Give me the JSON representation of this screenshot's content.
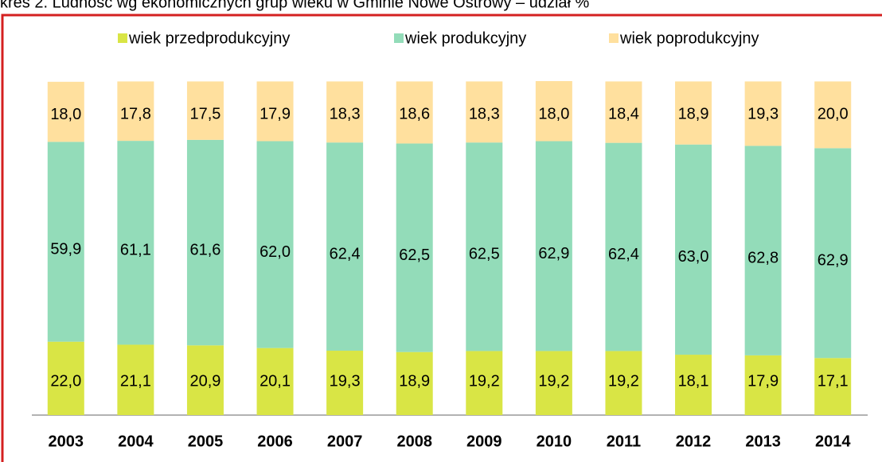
{
  "chart_data": {
    "type": "stacked_bar",
    "title": "kres 2. Ludność wg ekonomicznych grup wieku w Gminie Nowe Ostrowy – udział %",
    "categories": [
      "2003",
      "2004",
      "2005",
      "2006",
      "2007",
      "2008",
      "2009",
      "2010",
      "2011",
      "2012",
      "2013",
      "2014"
    ],
    "series": [
      {
        "name": "wiek przedprodukcyjny",
        "color": "#d9e545",
        "values": [
          22.0,
          21.1,
          20.9,
          20.1,
          19.3,
          18.9,
          19.2,
          19.2,
          19.2,
          18.1,
          17.9,
          17.1
        ],
        "value_labels": [
          "22,0",
          "21,1",
          "20,9",
          "20,1",
          "19,3",
          "18,9",
          "19,2",
          "19,2",
          "19,2",
          "18,1",
          "17,9",
          "17,1"
        ]
      },
      {
        "name": "wiek produkcyjny",
        "color": "#93dcb9",
        "values": [
          59.9,
          61.1,
          61.6,
          62.0,
          62.4,
          62.5,
          62.5,
          62.9,
          62.4,
          63.0,
          62.8,
          62.9
        ],
        "value_labels": [
          "59,9",
          "61,1",
          "61,6",
          "62,0",
          "62,4",
          "62,5",
          "62,5",
          "62,9",
          "62,4",
          "63,0",
          "62,8",
          "62,9"
        ]
      },
      {
        "name": "wiek poprodukcyjny",
        "color": "#ffe09e",
        "values": [
          18.0,
          17.8,
          17.5,
          17.9,
          18.3,
          18.6,
          18.3,
          18.0,
          18.4,
          18.9,
          19.3,
          20.0
        ],
        "value_labels": [
          "18,0",
          "17,8",
          "17,5",
          "17,9",
          "18,3",
          "18,6",
          "18,3",
          "18,0",
          "18,4",
          "18,9",
          "19,3",
          "20,0"
        ]
      }
    ],
    "legend": "top"
  }
}
